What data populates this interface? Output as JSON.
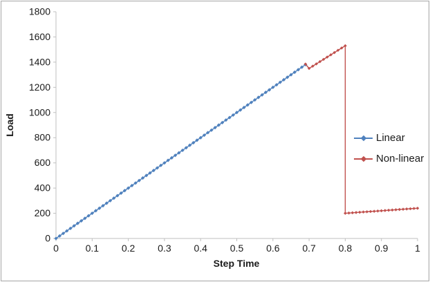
{
  "frame": {
    "border_color": "#a6a6a6",
    "background": "#ffffff"
  },
  "chart_data": {
    "type": "line",
    "title": "",
    "xlabel": "Step Time",
    "ylabel": "Load",
    "xlim": [
      0,
      1
    ],
    "ylim": [
      0,
      1800
    ],
    "grid": false,
    "legend_position": "right-middle",
    "axis_color": "#bfbfbf",
    "tick_text_color": "#1a1a1a",
    "xticks": {
      "values": [
        0,
        0.1,
        0.2,
        0.3,
        0.4,
        0.5,
        0.6,
        0.7,
        0.8,
        0.9,
        1
      ],
      "labels": [
        "0",
        "0.1",
        "0.2",
        "0.3",
        "0.4",
        "0.5",
        "0.6",
        "0.7",
        "0.8",
        "0.9",
        "1"
      ]
    },
    "yticks": {
      "values": [
        0,
        200,
        400,
        600,
        800,
        1000,
        1200,
        1400,
        1600,
        1800
      ],
      "labels": [
        "0",
        "200",
        "400",
        "600",
        "800",
        "1000",
        "1200",
        "1400",
        "1600",
        "1800"
      ]
    },
    "series": [
      {
        "name": "Linear",
        "color": "#4f81bd",
        "marker": "diamond",
        "marker_size": 2.6,
        "points": [
          [
            0,
            0
          ],
          [
            0.01,
            20
          ],
          [
            0.02,
            40
          ],
          [
            0.03,
            60
          ],
          [
            0.04,
            80
          ],
          [
            0.05,
            100
          ],
          [
            0.06,
            120
          ],
          [
            0.07,
            140
          ],
          [
            0.08,
            160
          ],
          [
            0.09,
            180
          ],
          [
            0.1,
            200
          ],
          [
            0.11,
            220
          ],
          [
            0.12,
            240
          ],
          [
            0.13,
            260
          ],
          [
            0.14,
            280
          ],
          [
            0.15,
            300
          ],
          [
            0.16,
            320
          ],
          [
            0.17,
            340
          ],
          [
            0.18,
            360
          ],
          [
            0.19,
            380
          ],
          [
            0.2,
            400
          ],
          [
            0.21,
            420
          ],
          [
            0.22,
            440
          ],
          [
            0.23,
            460
          ],
          [
            0.24,
            480
          ],
          [
            0.25,
            500
          ],
          [
            0.26,
            520
          ],
          [
            0.27,
            540
          ],
          [
            0.28,
            560
          ],
          [
            0.29,
            580
          ],
          [
            0.3,
            600
          ],
          [
            0.31,
            620
          ],
          [
            0.32,
            640
          ],
          [
            0.33,
            660
          ],
          [
            0.34,
            680
          ],
          [
            0.35,
            700
          ],
          [
            0.36,
            720
          ],
          [
            0.37,
            740
          ],
          [
            0.38,
            760
          ],
          [
            0.39,
            780
          ],
          [
            0.4,
            800
          ],
          [
            0.41,
            820
          ],
          [
            0.42,
            840
          ],
          [
            0.43,
            860
          ],
          [
            0.44,
            880
          ],
          [
            0.45,
            900
          ],
          [
            0.46,
            920
          ],
          [
            0.47,
            940
          ],
          [
            0.48,
            960
          ],
          [
            0.49,
            980
          ],
          [
            0.5,
            1000
          ],
          [
            0.51,
            1020
          ],
          [
            0.52,
            1040
          ],
          [
            0.53,
            1060
          ],
          [
            0.54,
            1080
          ],
          [
            0.55,
            1100
          ],
          [
            0.56,
            1120
          ],
          [
            0.57,
            1140
          ],
          [
            0.58,
            1160
          ],
          [
            0.59,
            1180
          ],
          [
            0.6,
            1200
          ],
          [
            0.61,
            1220
          ],
          [
            0.62,
            1240
          ],
          [
            0.63,
            1260
          ],
          [
            0.64,
            1280
          ],
          [
            0.65,
            1300
          ],
          [
            0.66,
            1320
          ],
          [
            0.67,
            1340
          ],
          [
            0.68,
            1360
          ],
          [
            0.69,
            1380
          ]
        ]
      },
      {
        "name": "Non-linear",
        "color": "#c0504d",
        "marker": "diamond",
        "marker_size": 2.3,
        "points": [
          [
            0.69,
            1385
          ],
          [
            0.7,
            1350
          ],
          [
            0.71,
            1368
          ],
          [
            0.72,
            1386
          ],
          [
            0.73,
            1404
          ],
          [
            0.74,
            1422
          ],
          [
            0.75,
            1440
          ],
          [
            0.76,
            1458
          ],
          [
            0.77,
            1476
          ],
          [
            0.78,
            1494
          ],
          [
            0.79,
            1512
          ],
          [
            0.8,
            1530
          ],
          [
            0.8,
            200
          ],
          [
            0.81,
            202
          ],
          [
            0.82,
            204
          ],
          [
            0.83,
            206
          ],
          [
            0.84,
            208
          ],
          [
            0.85,
            210
          ],
          [
            0.86,
            212
          ],
          [
            0.87,
            214
          ],
          [
            0.88,
            216
          ],
          [
            0.89,
            218
          ],
          [
            0.9,
            220
          ],
          [
            0.91,
            222
          ],
          [
            0.92,
            224
          ],
          [
            0.93,
            226
          ],
          [
            0.94,
            228
          ],
          [
            0.95,
            230
          ],
          [
            0.96,
            232
          ],
          [
            0.97,
            234
          ],
          [
            0.98,
            236
          ],
          [
            0.99,
            238
          ],
          [
            1,
            240
          ]
        ]
      }
    ]
  }
}
